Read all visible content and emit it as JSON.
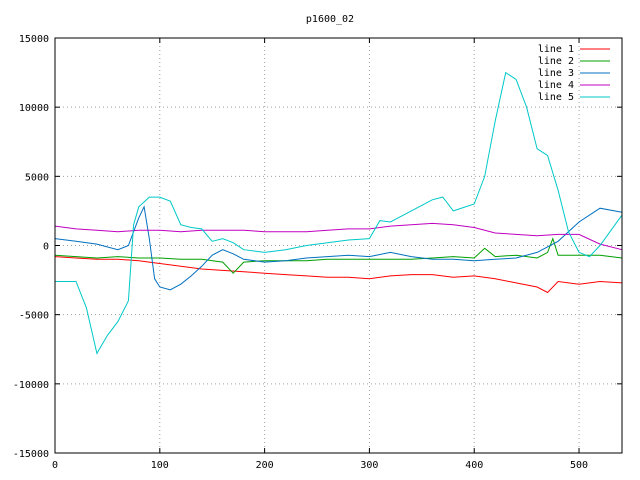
{
  "chart_data": {
    "type": "line",
    "title": "p1600_02",
    "xlabel": "",
    "ylabel": "",
    "xlim": [
      0,
      541
    ],
    "ylim": [
      -15000,
      15000
    ],
    "x_ticks": [
      0,
      100,
      200,
      300,
      400,
      500
    ],
    "y_ticks": [
      -15000,
      -10000,
      -5000,
      0,
      5000,
      10000,
      15000
    ],
    "grid": true,
    "legend_placement": "top-right",
    "series": [
      {
        "name": "line 1",
        "color": "#ff0000",
        "points": [
          [
            0,
            -800
          ],
          [
            20,
            -900
          ],
          [
            40,
            -1000
          ],
          [
            60,
            -1000
          ],
          [
            80,
            -1100
          ],
          [
            100,
            -1300
          ],
          [
            120,
            -1500
          ],
          [
            140,
            -1700
          ],
          [
            160,
            -1800
          ],
          [
            180,
            -1900
          ],
          [
            200,
            -2000
          ],
          [
            220,
            -2100
          ],
          [
            240,
            -2200
          ],
          [
            260,
            -2300
          ],
          [
            280,
            -2300
          ],
          [
            300,
            -2400
          ],
          [
            320,
            -2200
          ],
          [
            340,
            -2100
          ],
          [
            360,
            -2100
          ],
          [
            380,
            -2300
          ],
          [
            400,
            -2200
          ],
          [
            420,
            -2400
          ],
          [
            440,
            -2700
          ],
          [
            460,
            -3000
          ],
          [
            470,
            -3400
          ],
          [
            480,
            -2600
          ],
          [
            500,
            -2800
          ],
          [
            520,
            -2600
          ],
          [
            541,
            -2700
          ]
        ]
      },
      {
        "name": "line 2",
        "color": "#00a000",
        "points": [
          [
            0,
            -700
          ],
          [
            20,
            -800
          ],
          [
            40,
            -900
          ],
          [
            60,
            -800
          ],
          [
            80,
            -900
          ],
          [
            100,
            -900
          ],
          [
            120,
            -1000
          ],
          [
            140,
            -1000
          ],
          [
            160,
            -1200
          ],
          [
            170,
            -2000
          ],
          [
            180,
            -1200
          ],
          [
            200,
            -1100
          ],
          [
            220,
            -1100
          ],
          [
            240,
            -1100
          ],
          [
            260,
            -1000
          ],
          [
            280,
            -1000
          ],
          [
            300,
            -1000
          ],
          [
            320,
            -1000
          ],
          [
            340,
            -1000
          ],
          [
            360,
            -900
          ],
          [
            380,
            -800
          ],
          [
            400,
            -900
          ],
          [
            410,
            -200
          ],
          [
            420,
            -800
          ],
          [
            440,
            -700
          ],
          [
            460,
            -900
          ],
          [
            470,
            -500
          ],
          [
            475,
            500
          ],
          [
            480,
            -700
          ],
          [
            500,
            -700
          ],
          [
            520,
            -700
          ],
          [
            541,
            -900
          ]
        ]
      },
      {
        "name": "line 3",
        "color": "#0070c0",
        "points": [
          [
            0,
            500
          ],
          [
            20,
            300
          ],
          [
            40,
            100
          ],
          [
            60,
            -300
          ],
          [
            70,
            0
          ],
          [
            80,
            2000
          ],
          [
            85,
            2800
          ],
          [
            90,
            500
          ],
          [
            95,
            -2400
          ],
          [
            100,
            -3000
          ],
          [
            110,
            -3200
          ],
          [
            120,
            -2800
          ],
          [
            130,
            -2200
          ],
          [
            140,
            -1500
          ],
          [
            150,
            -700
          ],
          [
            160,
            -300
          ],
          [
            170,
            -600
          ],
          [
            180,
            -1000
          ],
          [
            200,
            -1200
          ],
          [
            220,
            -1100
          ],
          [
            240,
            -900
          ],
          [
            260,
            -800
          ],
          [
            280,
            -700
          ],
          [
            300,
            -800
          ],
          [
            320,
            -500
          ],
          [
            340,
            -800
          ],
          [
            360,
            -1000
          ],
          [
            380,
            -1000
          ],
          [
            400,
            -1100
          ],
          [
            420,
            -1000
          ],
          [
            440,
            -900
          ],
          [
            460,
            -500
          ],
          [
            480,
            300
          ],
          [
            500,
            1700
          ],
          [
            520,
            2700
          ],
          [
            541,
            2400
          ]
        ]
      },
      {
        "name": "line 4",
        "color": "#c000c0",
        "points": [
          [
            0,
            1400
          ],
          [
            20,
            1200
          ],
          [
            40,
            1100
          ],
          [
            60,
            1000
          ],
          [
            80,
            1100
          ],
          [
            100,
            1100
          ],
          [
            120,
            1000
          ],
          [
            140,
            1100
          ],
          [
            160,
            1100
          ],
          [
            180,
            1100
          ],
          [
            200,
            1000
          ],
          [
            220,
            1000
          ],
          [
            240,
            1000
          ],
          [
            260,
            1100
          ],
          [
            280,
            1200
          ],
          [
            300,
            1200
          ],
          [
            320,
            1400
          ],
          [
            340,
            1500
          ],
          [
            360,
            1600
          ],
          [
            380,
            1500
          ],
          [
            400,
            1300
          ],
          [
            420,
            900
          ],
          [
            440,
            800
          ],
          [
            460,
            700
          ],
          [
            480,
            800
          ],
          [
            500,
            800
          ],
          [
            520,
            100
          ],
          [
            541,
            -300
          ]
        ]
      },
      {
        "name": "line 5",
        "color": "#00c8c8",
        "points": [
          [
            0,
            -2600
          ],
          [
            20,
            -2600
          ],
          [
            30,
            -4500
          ],
          [
            40,
            -7800
          ],
          [
            50,
            -6500
          ],
          [
            60,
            -5500
          ],
          [
            70,
            -4000
          ],
          [
            75,
            1500
          ],
          [
            80,
            2800
          ],
          [
            90,
            3500
          ],
          [
            100,
            3500
          ],
          [
            110,
            3200
          ],
          [
            120,
            1500
          ],
          [
            130,
            1300
          ],
          [
            140,
            1200
          ],
          [
            150,
            300
          ],
          [
            160,
            500
          ],
          [
            170,
            200
          ],
          [
            180,
            -300
          ],
          [
            200,
            -500
          ],
          [
            220,
            -300
          ],
          [
            240,
            0
          ],
          [
            260,
            200
          ],
          [
            280,
            400
          ],
          [
            300,
            500
          ],
          [
            310,
            1800
          ],
          [
            320,
            1700
          ],
          [
            340,
            2500
          ],
          [
            360,
            3300
          ],
          [
            370,
            3500
          ],
          [
            380,
            2500
          ],
          [
            400,
            3000
          ],
          [
            410,
            5000
          ],
          [
            420,
            9000
          ],
          [
            430,
            12500
          ],
          [
            440,
            12000
          ],
          [
            450,
            10000
          ],
          [
            460,
            7000
          ],
          [
            470,
            6500
          ],
          [
            480,
            4000
          ],
          [
            490,
            1000
          ],
          [
            500,
            -500
          ],
          [
            510,
            -800
          ],
          [
            520,
            0
          ],
          [
            541,
            2200
          ]
        ]
      }
    ]
  }
}
